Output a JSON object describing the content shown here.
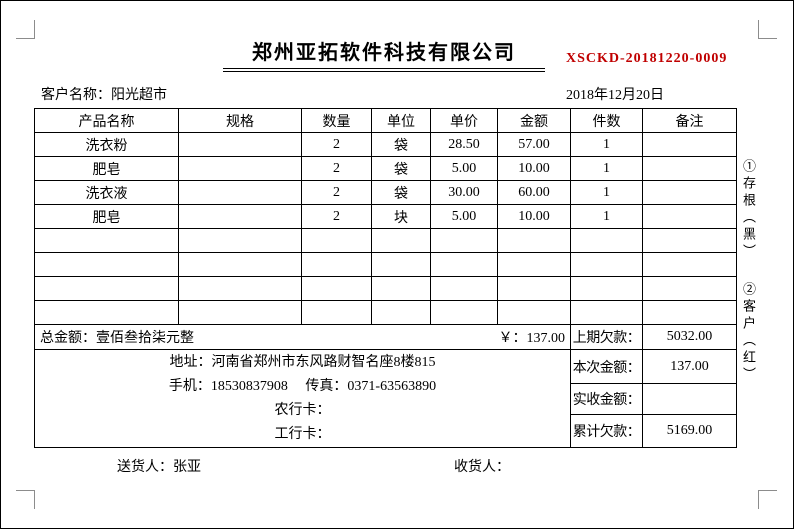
{
  "header": {
    "company_title": "郑州亚拓软件科技有限公司",
    "doc_number": "XSCKD-20181220-0009",
    "doc_number_color": "#C00000",
    "customer": "客户名称：阳光超市",
    "date": "2018年12月20日"
  },
  "table": {
    "headers": [
      "产品名称",
      "规格",
      "数量",
      "单位",
      "单价",
      "金额",
      "件数",
      "备注"
    ],
    "rows": [
      [
        "洗衣粉",
        "",
        "2",
        "袋",
        "28.50",
        "57.00",
        "1",
        ""
      ],
      [
        "肥皂",
        "",
        "2",
        "袋",
        "5.00",
        "10.00",
        "1",
        ""
      ],
      [
        "洗衣液",
        "",
        "2",
        "袋",
        "30.00",
        "60.00",
        "1",
        ""
      ],
      [
        "肥皂",
        "",
        "2",
        "块",
        "5.00",
        "10.00",
        "1",
        ""
      ],
      [
        "",
        "",
        "",
        "",
        "",
        "",
        "",
        ""
      ],
      [
        "",
        "",
        "",
        "",
        "",
        "",
        "",
        ""
      ],
      [
        "",
        "",
        "",
        "",
        "",
        "",
        "",
        ""
      ],
      [
        "",
        "",
        "",
        "",
        "",
        "",
        "",
        ""
      ]
    ]
  },
  "summary": {
    "total_label": "总金额：壹佰叁拾柒元整",
    "total_amount": "￥：137.00",
    "previous_due_label": "上期欠款：",
    "previous_due": "5032.00",
    "current_label": "本次金额：",
    "current_amount": "137.00",
    "received_label": "实收金额：",
    "received_amount": "",
    "cumulative_label": "累计欠款：",
    "cumulative_due": "5169.00"
  },
  "contact": {
    "address": "地址：河南省郑州市东风路财智名座8楼815",
    "phone_fax": "手机：18530837908　 传真：0371-63563890",
    "abc_card": "农行卡：",
    "icbc_card": "工行卡："
  },
  "footer": {
    "deliverer": "送货人：张亚",
    "receiver": "收货人："
  },
  "side_labels": {
    "copy1": "①存根（黑）",
    "copy2": "②客户（红）"
  }
}
